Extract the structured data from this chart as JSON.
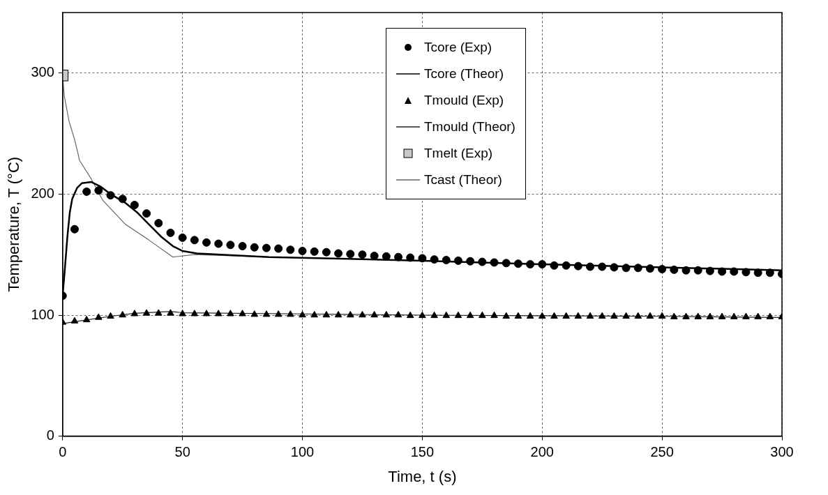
{
  "chart_data": {
    "type": "scatter",
    "xlabel": "Time, t (s)",
    "ylabel": "Temperature, T (°C)",
    "xlim": [
      0,
      300
    ],
    "xticks": [
      0,
      50,
      100,
      150,
      200,
      250,
      300
    ],
    "ylim": [
      0,
      350
    ],
    "yticks": [
      0,
      100,
      200,
      300
    ],
    "grid": true,
    "legend": "top",
    "series": [
      {
        "name": "Tcore (Exp)",
        "type": "scatter",
        "marker": "circle",
        "color": "#000000",
        "x": [
          0,
          5,
          10,
          15,
          20,
          25,
          30,
          35,
          40,
          45,
          50,
          55,
          60,
          65,
          70,
          75,
          80,
          85,
          90,
          95,
          100,
          105,
          110,
          115,
          120,
          125,
          130,
          135,
          140,
          145,
          150,
          155,
          160,
          165,
          170,
          175,
          180,
          185,
          190,
          195,
          200,
          205,
          210,
          215,
          220,
          225,
          230,
          235,
          240,
          245,
          250,
          255,
          260,
          265,
          270,
          275,
          280,
          285,
          290,
          295,
          300
        ],
        "values": [
          116,
          171,
          202,
          203,
          199,
          196,
          191,
          184,
          176,
          168,
          164,
          162,
          160,
          159,
          158,
          157,
          156,
          155.5,
          155,
          154,
          153,
          152.5,
          152,
          151,
          150.5,
          150,
          149,
          148.5,
          148,
          147.5,
          147,
          146,
          145.5,
          145,
          144.5,
          144,
          143.5,
          143,
          142.5,
          142,
          142,
          141,
          141,
          140.5,
          140,
          140,
          139.5,
          139,
          139,
          138.5,
          138,
          137.5,
          137,
          137,
          136.5,
          136,
          136,
          135.5,
          135,
          135,
          134
        ]
      },
      {
        "name": "Tcore (Theor)",
        "type": "line",
        "color": "#000000",
        "x": [
          0,
          1,
          2,
          3,
          4,
          6,
          8,
          12,
          16,
          20,
          26,
          31,
          36,
          41,
          46,
          50,
          56,
          86,
          150,
          200,
          250,
          300
        ],
        "values": [
          116,
          140,
          165,
          185,
          196,
          205,
          209,
          210,
          206,
          200,
          193,
          185,
          175,
          165,
          157,
          153,
          151,
          148,
          145,
          142,
          139.5,
          137
        ]
      },
      {
        "name": "Tmould (Exp)",
        "type": "scatter",
        "marker": "triangle",
        "color": "#000000",
        "x": [
          0,
          5,
          10,
          15,
          20,
          25,
          30,
          35,
          40,
          45,
          50,
          55,
          60,
          65,
          70,
          75,
          80,
          85,
          90,
          95,
          100,
          105,
          110,
          115,
          120,
          125,
          130,
          135,
          140,
          145,
          150,
          155,
          160,
          165,
          170,
          175,
          180,
          185,
          190,
          195,
          200,
          205,
          210,
          215,
          220,
          225,
          230,
          235,
          240,
          245,
          250,
          255,
          260,
          265,
          270,
          275,
          280,
          285,
          290,
          295,
          300
        ],
        "values": [
          94,
          95,
          96,
          98,
          99,
          100,
          101,
          101.5,
          101.5,
          101.5,
          101,
          101,
          101,
          101,
          101,
          101,
          100.5,
          100.5,
          100.5,
          100.5,
          100,
          100,
          100,
          100,
          100,
          100,
          100,
          100,
          100,
          99.5,
          99.5,
          99.5,
          99.5,
          99.5,
          99.5,
          99.5,
          99.5,
          99,
          99,
          99,
          99,
          99,
          99,
          99,
          99,
          99,
          99,
          99,
          99,
          99,
          99,
          98.5,
          98.5,
          98.5,
          98.5,
          98.5,
          98.5,
          98.5,
          98.5,
          98.5,
          98.5
        ]
      },
      {
        "name": "Tmould (Theor)",
        "type": "line",
        "color": "#222222",
        "x": [
          0,
          10,
          20,
          30,
          40,
          45,
          50,
          100,
          150,
          200,
          250,
          300
        ],
        "values": [
          93,
          96,
          99,
          101.5,
          102.5,
          103,
          102,
          101,
          100,
          99.5,
          99,
          98
        ]
      },
      {
        "name": "Tmelt (Exp)",
        "type": "scatter",
        "marker": "square",
        "color": "#c8c8c8",
        "x": [
          0
        ],
        "values": [
          298
        ]
      },
      {
        "name": "Tcast (Theor)",
        "type": "line",
        "color": "#666666",
        "x": [
          0,
          0.7,
          2.7,
          5,
          6.6,
          7,
          11.8,
          16.7,
          26.2,
          36,
          46,
          55,
          86,
          150,
          200,
          250,
          300
        ],
        "values": [
          298,
          281,
          260,
          245,
          232,
          228,
          213,
          195,
          175,
          162,
          148,
          150,
          148,
          145,
          142,
          139.5,
          137
        ]
      }
    ]
  }
}
